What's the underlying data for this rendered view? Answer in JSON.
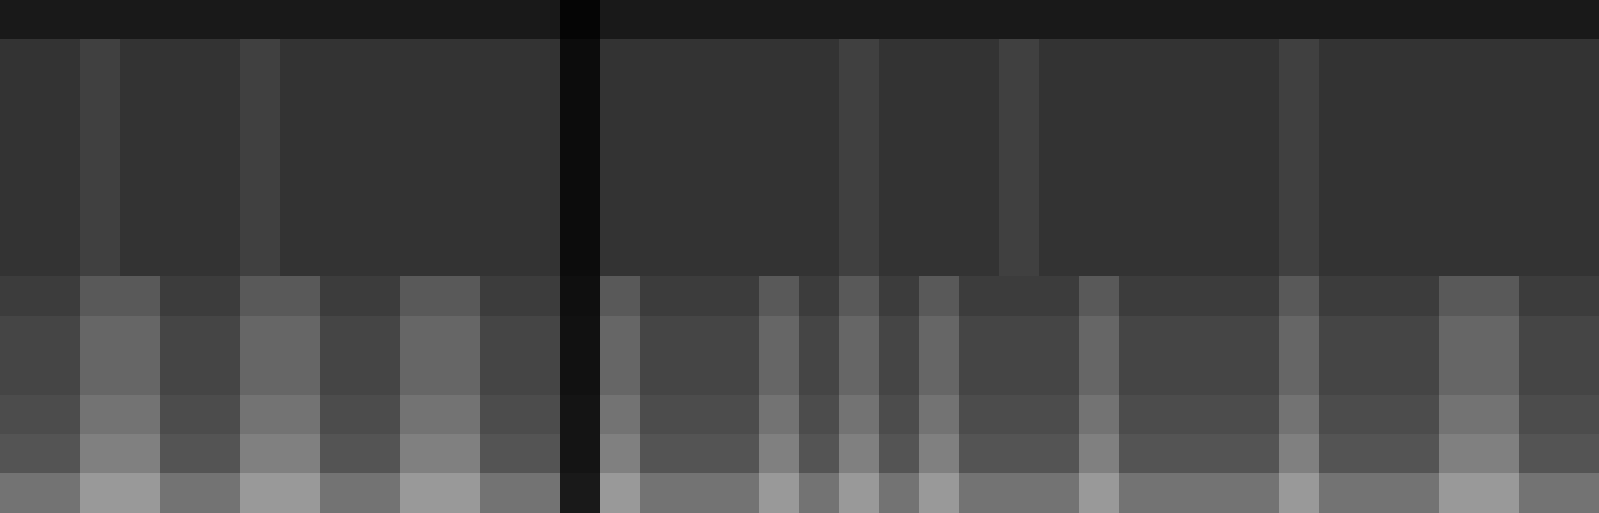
{
  "chart_data": {
    "type": "heatmap",
    "tick_labels": false,
    "color": "gray",
    "zlim": [
      0,
      1
    ],
    "cells": [
      [
        0.1,
        0.1,
        0.1,
        0.1,
        0.1,
        0.1,
        0.1,
        0.1,
        0.1,
        0.1,
        0.1,
        0.1,
        0.1,
        0.1,
        0.02,
        0.1,
        0.1,
        0.1,
        0.1,
        0.1,
        0.1,
        0.1,
        0.1,
        0.1,
        0.1,
        0.1,
        0.1,
        0.1,
        0.1,
        0.1,
        0.1,
        0.1,
        0.1,
        0.1,
        0.1,
        0.1,
        0.1,
        0.1,
        0.1,
        0.1
      ],
      [
        0.2,
        0.2,
        0.25,
        0.2,
        0.2,
        0.2,
        0.25,
        0.2,
        0.2,
        0.2,
        0.2,
        0.2,
        0.2,
        0.2,
        0.05,
        0.2,
        0.2,
        0.2,
        0.2,
        0.2,
        0.2,
        0.25,
        0.2,
        0.2,
        0.2,
        0.25,
        0.2,
        0.2,
        0.2,
        0.2,
        0.2,
        0.2,
        0.25,
        0.2,
        0.2,
        0.2,
        0.2,
        0.2,
        0.2,
        0.2
      ],
      [
        0.2,
        0.2,
        0.25,
        0.2,
        0.2,
        0.2,
        0.25,
        0.2,
        0.2,
        0.2,
        0.2,
        0.2,
        0.2,
        0.2,
        0.05,
        0.2,
        0.2,
        0.2,
        0.2,
        0.2,
        0.2,
        0.25,
        0.2,
        0.2,
        0.2,
        0.25,
        0.2,
        0.2,
        0.2,
        0.2,
        0.2,
        0.2,
        0.25,
        0.2,
        0.2,
        0.2,
        0.2,
        0.2,
        0.2,
        0.2
      ],
      [
        0.2,
        0.2,
        0.25,
        0.2,
        0.2,
        0.2,
        0.25,
        0.2,
        0.2,
        0.2,
        0.2,
        0.2,
        0.2,
        0.2,
        0.05,
        0.2,
        0.2,
        0.2,
        0.2,
        0.2,
        0.2,
        0.25,
        0.2,
        0.2,
        0.2,
        0.25,
        0.2,
        0.2,
        0.2,
        0.2,
        0.2,
        0.2,
        0.25,
        0.2,
        0.2,
        0.2,
        0.2,
        0.2,
        0.2,
        0.2
      ],
      [
        0.2,
        0.2,
        0.25,
        0.2,
        0.2,
        0.2,
        0.25,
        0.2,
        0.2,
        0.2,
        0.2,
        0.2,
        0.2,
        0.2,
        0.05,
        0.2,
        0.2,
        0.2,
        0.2,
        0.2,
        0.2,
        0.25,
        0.2,
        0.2,
        0.2,
        0.25,
        0.2,
        0.2,
        0.2,
        0.2,
        0.2,
        0.2,
        0.25,
        0.2,
        0.2,
        0.2,
        0.2,
        0.2,
        0.2,
        0.2
      ],
      [
        0.2,
        0.2,
        0.25,
        0.2,
        0.2,
        0.2,
        0.25,
        0.2,
        0.2,
        0.2,
        0.2,
        0.2,
        0.2,
        0.2,
        0.05,
        0.2,
        0.2,
        0.2,
        0.2,
        0.2,
        0.2,
        0.25,
        0.2,
        0.2,
        0.2,
        0.25,
        0.2,
        0.2,
        0.2,
        0.2,
        0.2,
        0.2,
        0.25,
        0.2,
        0.2,
        0.2,
        0.2,
        0.2,
        0.2,
        0.2
      ],
      [
        0.2,
        0.2,
        0.25,
        0.2,
        0.2,
        0.2,
        0.25,
        0.2,
        0.2,
        0.2,
        0.2,
        0.2,
        0.2,
        0.2,
        0.05,
        0.2,
        0.2,
        0.2,
        0.2,
        0.2,
        0.2,
        0.25,
        0.2,
        0.2,
        0.2,
        0.25,
        0.2,
        0.2,
        0.2,
        0.2,
        0.2,
        0.2,
        0.25,
        0.2,
        0.2,
        0.2,
        0.2,
        0.2,
        0.2,
        0.2
      ],
      [
        0.24,
        0.24,
        0.35,
        0.35,
        0.24,
        0.24,
        0.35,
        0.35,
        0.24,
        0.24,
        0.35,
        0.35,
        0.24,
        0.24,
        0.06,
        0.35,
        0.24,
        0.24,
        0.24,
        0.35,
        0.24,
        0.35,
        0.24,
        0.35,
        0.24,
        0.24,
        0.24,
        0.35,
        0.24,
        0.24,
        0.24,
        0.24,
        0.35,
        0.24,
        0.24,
        0.24,
        0.35,
        0.35,
        0.24,
        0.24
      ],
      [
        0.27,
        0.27,
        0.4,
        0.4,
        0.27,
        0.27,
        0.4,
        0.4,
        0.27,
        0.27,
        0.4,
        0.4,
        0.27,
        0.27,
        0.07,
        0.4,
        0.27,
        0.27,
        0.27,
        0.4,
        0.27,
        0.4,
        0.27,
        0.4,
        0.27,
        0.27,
        0.27,
        0.4,
        0.27,
        0.27,
        0.27,
        0.27,
        0.4,
        0.27,
        0.27,
        0.27,
        0.4,
        0.4,
        0.27,
        0.27
      ],
      [
        0.27,
        0.27,
        0.4,
        0.4,
        0.27,
        0.27,
        0.4,
        0.4,
        0.27,
        0.27,
        0.4,
        0.4,
        0.27,
        0.27,
        0.07,
        0.4,
        0.27,
        0.27,
        0.27,
        0.4,
        0.27,
        0.4,
        0.27,
        0.4,
        0.27,
        0.27,
        0.27,
        0.4,
        0.27,
        0.27,
        0.27,
        0.27,
        0.4,
        0.27,
        0.27,
        0.27,
        0.4,
        0.4,
        0.27,
        0.27
      ],
      [
        0.3,
        0.3,
        0.45,
        0.45,
        0.3,
        0.3,
        0.45,
        0.45,
        0.3,
        0.3,
        0.45,
        0.45,
        0.3,
        0.3,
        0.08,
        0.45,
        0.3,
        0.3,
        0.3,
        0.45,
        0.3,
        0.45,
        0.3,
        0.45,
        0.3,
        0.3,
        0.3,
        0.45,
        0.3,
        0.3,
        0.3,
        0.3,
        0.45,
        0.3,
        0.3,
        0.3,
        0.45,
        0.45,
        0.3,
        0.3
      ],
      [
        0.33,
        0.33,
        0.5,
        0.5,
        0.33,
        0.33,
        0.5,
        0.5,
        0.33,
        0.33,
        0.5,
        0.5,
        0.33,
        0.33,
        0.08,
        0.5,
        0.33,
        0.33,
        0.33,
        0.5,
        0.33,
        0.5,
        0.33,
        0.5,
        0.33,
        0.33,
        0.33,
        0.5,
        0.33,
        0.33,
        0.33,
        0.33,
        0.5,
        0.33,
        0.33,
        0.33,
        0.5,
        0.5,
        0.33,
        0.33
      ],
      [
        0.45,
        0.45,
        0.6,
        0.6,
        0.45,
        0.45,
        0.6,
        0.6,
        0.45,
        0.45,
        0.6,
        0.6,
        0.45,
        0.45,
        0.1,
        0.6,
        0.45,
        0.45,
        0.45,
        0.6,
        0.45,
        0.6,
        0.45,
        0.6,
        0.45,
        0.45,
        0.45,
        0.6,
        0.45,
        0.45,
        0.45,
        0.45,
        0.6,
        0.45,
        0.45,
        0.45,
        0.6,
        0.6,
        0.45,
        0.45
      ]
    ]
  }
}
